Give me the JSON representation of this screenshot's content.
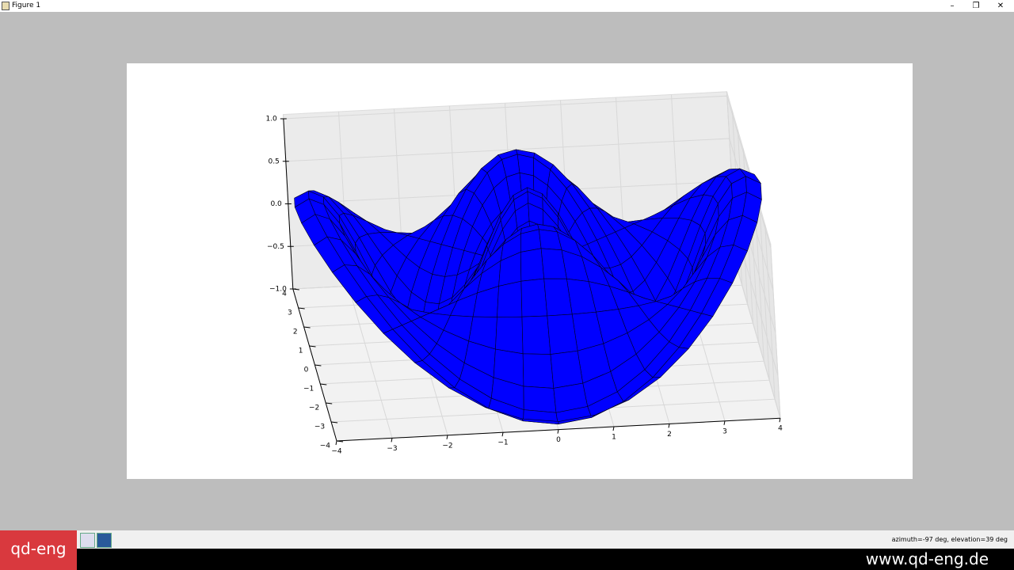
{
  "window": {
    "title": "Figure 1"
  },
  "plot": {
    "z_ticks": [
      "1.0",
      "0.5",
      "0.0",
      "−0.5",
      "−1.0"
    ],
    "y_ticks": [
      "4",
      "3",
      "2",
      "1",
      "0",
      "−1",
      "−2",
      "−3",
      "−4"
    ],
    "x_ticks": [
      "−4",
      "−3",
      "−2",
      "−1",
      "0",
      "1",
      "2",
      "3",
      "4"
    ]
  },
  "status": {
    "text": "azimuth=-97 deg, elevation=39 deg"
  },
  "watermark": {
    "brand": "qd-eng",
    "url": "www.qd-eng.de"
  }
}
